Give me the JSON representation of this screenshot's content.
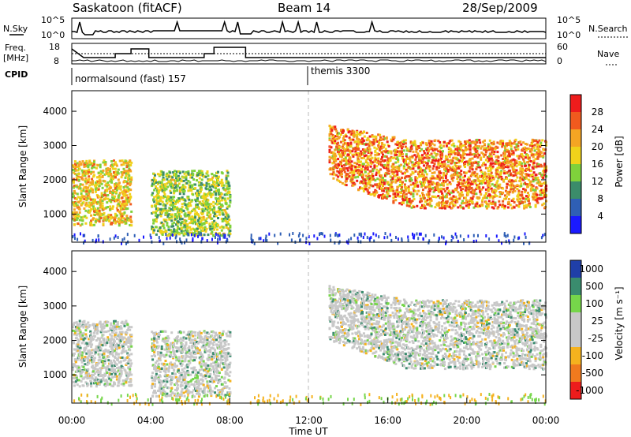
{
  "header": {
    "station": "Saskatoon (fitACF)",
    "beam": "Beam 14",
    "date": "28/Sep/2009"
  },
  "top_panels": {
    "noise": {
      "left_label": "N.Sky",
      "right_label": "N.Search",
      "left_ticks": [
        "10^5",
        "10^0"
      ],
      "right_ticks": [
        "10^5",
        "10^0"
      ]
    },
    "freq": {
      "left_label_line1": "Freq.",
      "left_label_line2": "[MHz]",
      "right_label": "Nave",
      "left_ticks": [
        "18",
        "8"
      ],
      "right_ticks": [
        "60",
        "0"
      ]
    },
    "cpid": {
      "label": "CPID",
      "modes": [
        {
          "name": "normalsound (fast) 157",
          "start_hour": 0
        },
        {
          "name": "themis 3300",
          "start_hour": 12
        }
      ]
    }
  },
  "chart_data": [
    {
      "type": "heatmap",
      "panel": "power",
      "ylabel": "Slant Range [km]",
      "y_ticks": [
        "1000",
        "2000",
        "3000",
        "4000"
      ],
      "ylim": [
        180,
        4600
      ],
      "xlim_hours": [
        0,
        24
      ],
      "colorbar_label": "Power [dB]",
      "colorbar_ticks": [
        "4",
        "8",
        "12",
        "16",
        "20",
        "24",
        "28"
      ],
      "colors": [
        "#1a1aff",
        "#2f5fb5",
        "#3b8c6a",
        "#7fd13b",
        "#f0d21a",
        "#f5a523",
        "#f05a1e",
        "#ee1c1c"
      ],
      "echo_regions": [
        {
          "t0": 0.0,
          "t1": 3.0,
          "r0": 700,
          "r1": 2600,
          "level": 0.7
        },
        {
          "t0": 4.0,
          "t1": 8.0,
          "r0": 400,
          "r1": 2300,
          "level": 0.55
        },
        {
          "t0": 13.0,
          "t1": 24.0,
          "r0": 1200,
          "r1": 3200,
          "level": 0.85
        }
      ]
    },
    {
      "type": "heatmap",
      "panel": "velocity",
      "ylabel": "Slant Range [km]",
      "y_ticks": [
        "1000",
        "2000",
        "3000",
        "4000"
      ],
      "ylim": [
        180,
        4600
      ],
      "xlim_hours": [
        0,
        24
      ],
      "colorbar_label": "Velocity [m s⁻¹]",
      "colorbar_ticks": [
        "1000",
        "500",
        "100",
        "25",
        "-25",
        "-100",
        "-500",
        "-1000"
      ],
      "colors": [
        "#1f3fa8",
        "#3a8c6e",
        "#76d64a",
        "#c8c8c8",
        "#c8c8c8",
        "#f5b21e",
        "#f07a1e",
        "#ee1c1c"
      ],
      "x_ticks": [
        "00:00",
        "04:00",
        "08:00",
        "12:00",
        "16:00",
        "20:00",
        "00:00"
      ],
      "xlabel": "Time UT"
    }
  ]
}
